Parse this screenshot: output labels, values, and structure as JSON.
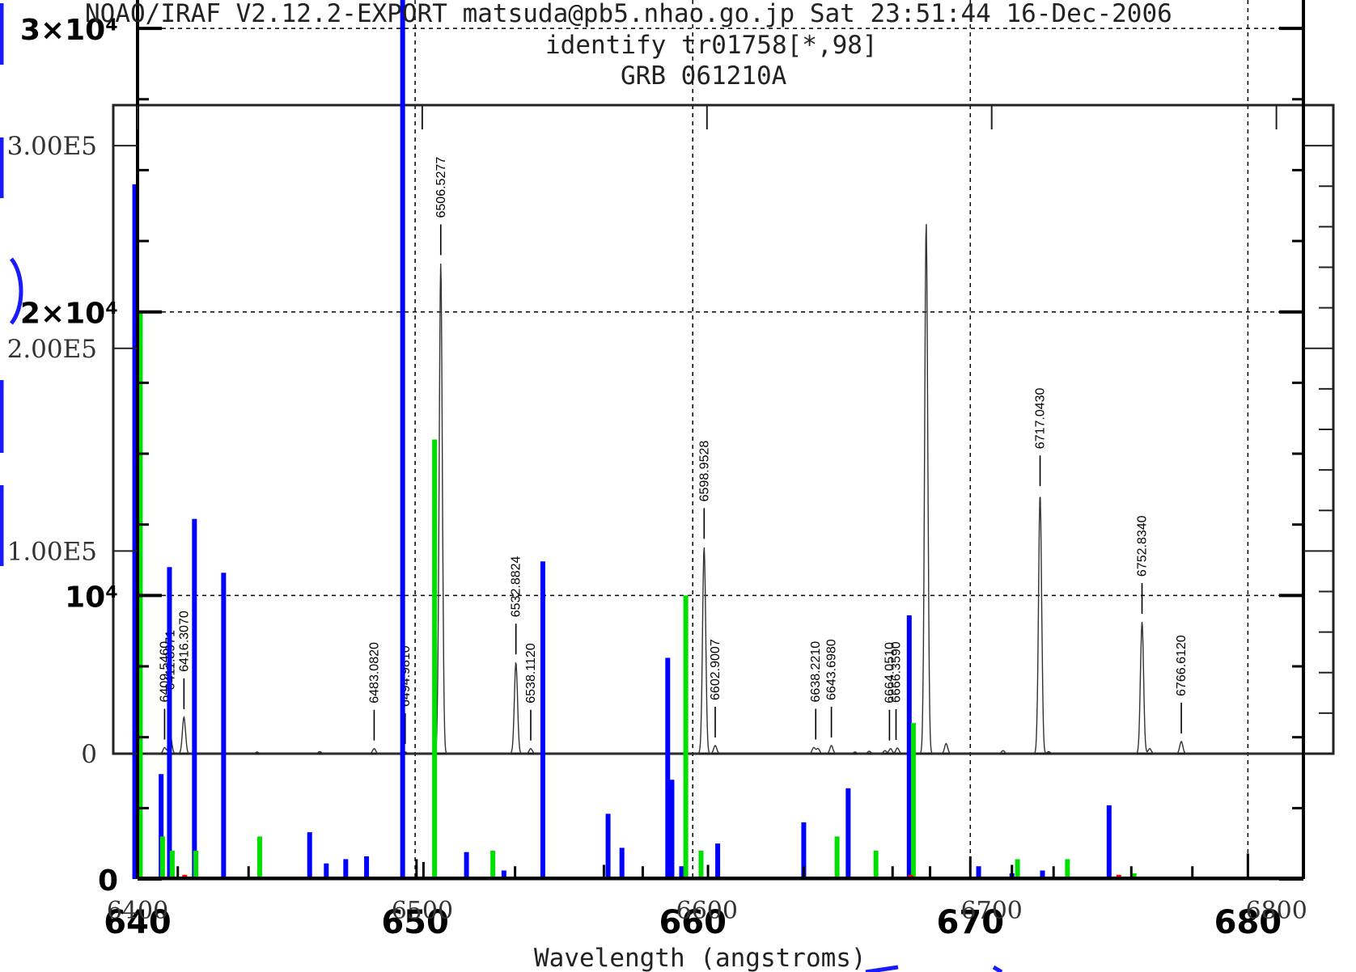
{
  "header": {
    "line1": "NOAO/IRAF V2.12.2-EXPORT matsuda@pb5.nhao.go.jp Sat 23:51:44 16-Dec-2006",
    "line2": "identify tr01758[*,98]",
    "line3": "GRB 061210A"
  },
  "chart_data": [
    {
      "type": "line",
      "name": "identify-spectrum",
      "xlabel": "Wavelength (angstroms)",
      "ylabel": "",
      "xlim": [
        6400,
        6820
      ],
      "ylim": [
        0,
        320000.0
      ],
      "x_ticks": [
        6400,
        6500,
        6600,
        6700,
        6800
      ],
      "x_tick_labels": [
        "6400",
        "6500",
        "6600",
        "6700",
        "6800"
      ],
      "y_ticks": [
        0,
        100000,
        200000,
        300000
      ],
      "y_tick_labels": [
        "0",
        "1.00E5",
        "2.00E5",
        "3.00E5"
      ],
      "grid": false,
      "peaks": [
        {
          "x": 6409.5,
          "y": 3000
        },
        {
          "x": 6411.5,
          "y": 9000
        },
        {
          "x": 6416.3,
          "y": 18000
        },
        {
          "x": 6442.0,
          "y": 800
        },
        {
          "x": 6464.0,
          "y": 1000
        },
        {
          "x": 6483.1,
          "y": 2500
        },
        {
          "x": 6494.0,
          "y": 800
        },
        {
          "x": 6506.5,
          "y": 242000
        },
        {
          "x": 6532.9,
          "y": 45000
        },
        {
          "x": 6538.1,
          "y": 2500
        },
        {
          "x": 6599.0,
          "y": 102000
        },
        {
          "x": 6602.9,
          "y": 4000
        },
        {
          "x": 6637.5,
          "y": 3000
        },
        {
          "x": 6639.0,
          "y": 2500
        },
        {
          "x": 6643.7,
          "y": 4000
        },
        {
          "x": 6652.0,
          "y": 800
        },
        {
          "x": 6657.0,
          "y": 1200
        },
        {
          "x": 6662.5,
          "y": 1500
        },
        {
          "x": 6664.5,
          "y": 2500
        },
        {
          "x": 6666.9,
          "y": 2800
        },
        {
          "x": 6677.0,
          "y": 262000
        },
        {
          "x": 6684.0,
          "y": 5000
        },
        {
          "x": 6704.0,
          "y": 1500
        },
        {
          "x": 6717.0,
          "y": 128000
        },
        {
          "x": 6720.0,
          "y": 1000
        },
        {
          "x": 6752.8,
          "y": 65000
        },
        {
          "x": 6755.5,
          "y": 2500
        },
        {
          "x": 6766.6,
          "y": 6000
        }
      ],
      "line_ids": [
        {
          "x": 6409.5,
          "label": "6409.5460",
          "y": 3000
        },
        {
          "x": 6411.5,
          "label": "6411.8971",
          "y": 9000
        },
        {
          "x": 6416.3,
          "label": "6416.3070",
          "y": 18000
        },
        {
          "x": 6483.1,
          "label": "6483.0820",
          "y": 2500
        },
        {
          "x": 6494.0,
          "label": "6494.9810",
          "y": 800
        },
        {
          "x": 6506.5,
          "label": "6506.5277",
          "y": 242000
        },
        {
          "x": 6532.9,
          "label": "6532.8824",
          "y": 45000
        },
        {
          "x": 6538.1,
          "label": "6538.1120",
          "y": 2500
        },
        {
          "x": 6599.0,
          "label": "6598.9528",
          "y": 102000
        },
        {
          "x": 6602.9,
          "label": "6602.9007",
          "y": 4000
        },
        {
          "x": 6638.2,
          "label": "6638.2210",
          "y": 3000
        },
        {
          "x": 6643.7,
          "label": "6643.6980",
          "y": 4000
        },
        {
          "x": 6664.1,
          "label": "6664.0510",
          "y": 2500
        },
        {
          "x": 6666.4,
          "label": "6666.3590",
          "y": 2800
        },
        {
          "x": 6717.0,
          "label": "6717.0430",
          "y": 128000
        },
        {
          "x": 6752.8,
          "label": "6752.8340",
          "y": 65000
        },
        {
          "x": 6766.6,
          "label": "6766.6120",
          "y": 6000
        }
      ]
    },
    {
      "type": "bar",
      "name": "reference-line-list",
      "xlim": [
        640,
        682
      ],
      "ylim": [
        0,
        31000
      ],
      "x_ticks": [
        640,
        650,
        660,
        670,
        680
      ],
      "x_tick_labels": [
        "640",
        "650",
        "660",
        "670",
        "680"
      ],
      "y_ticks": [
        0,
        10000,
        20000,
        30000
      ],
      "y_tick_labels": [
        "0",
        "10⁴",
        "2×10⁴",
        "3×10⁴"
      ],
      "grid": true,
      "series": [
        {
          "color": "#0000ff",
          "x": [
            639.9,
            640.85,
            641.15,
            642.05,
            643.1,
            646.2,
            646.8,
            647.5,
            648.25,
            649.55,
            651.85,
            653.2,
            654.6,
            656.95,
            657.45,
            659.1,
            659.25,
            659.6,
            660.9,
            664.0,
            665.6,
            667.8,
            670.3,
            671.5,
            672.6,
            675.0
          ],
          "y": [
            24500,
            3700,
            11000,
            12700,
            10800,
            1650,
            550,
            700,
            800,
            31000,
            950,
            300,
            11200,
            2300,
            1100,
            7800,
            3500,
            450,
            1250,
            2000,
            3200,
            9300,
            450,
            200,
            300,
            2600
          ]
        },
        {
          "color": "#00e000",
          "x": [
            640.1,
            640.9,
            641.25,
            642.1,
            644.4,
            650.7,
            652.8,
            659.75,
            660.3,
            665.2,
            666.6,
            667.95,
            671.7,
            673.5,
            675.9
          ],
          "y": [
            20000,
            1500,
            1000,
            1000,
            1500,
            15500,
            1000,
            10000,
            1000,
            1500,
            1000,
            5500,
            700,
            700,
            200
          ]
        },
        {
          "color": "#000000",
          "x": [
            641.45,
            644.0,
            650.05,
            650.3,
            653.6,
            656.8,
            658.2,
            660.55,
            664.0,
            667.2,
            668.55,
            670.0,
            671.5,
            673.0,
            675.8,
            678.0,
            680.0
          ],
          "y": [
            450,
            450,
            700,
            600,
            450,
            500,
            450,
            500,
            450,
            450,
            450,
            800,
            500,
            450,
            450,
            450,
            900
          ]
        },
        {
          "color": "#ff0000",
          "x": [
            641.7,
            667.85,
            675.35
          ],
          "y": [
            150,
            150,
            150
          ]
        }
      ]
    }
  ]
}
